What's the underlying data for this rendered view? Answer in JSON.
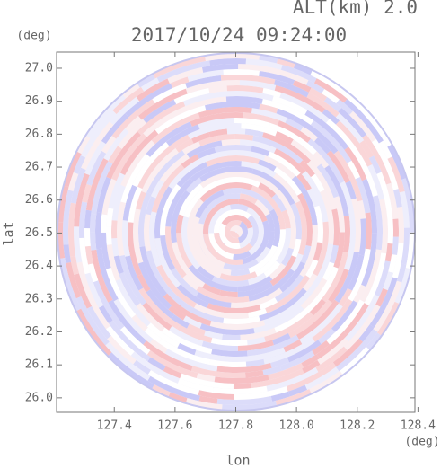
{
  "chart_data": {
    "type": "radar-ppi",
    "title": "2017/10/24 09:24:00",
    "subtitle": "ALT(km) 2.0",
    "x_label": "lon",
    "y_label": "lat",
    "x_unit": "(deg)",
    "y_unit": "(deg)",
    "xlim": [
      127.21,
      128.39
    ],
    "ylim": [
      25.956,
      27.049
    ],
    "xticks": [
      127.4,
      127.6,
      127.8,
      {
        "value": 128.0,
        "label": "128.0"
      },
      128.2,
      128.4
    ],
    "yticks": [
      {
        "value": 26.0,
        "label": "26.0"
      },
      26.1,
      26.2,
      26.3,
      26.4,
      26.5,
      26.6,
      26.7,
      26.8,
      26.9,
      {
        "value": 27.0,
        "label": "27.0"
      }
    ]
  }
}
